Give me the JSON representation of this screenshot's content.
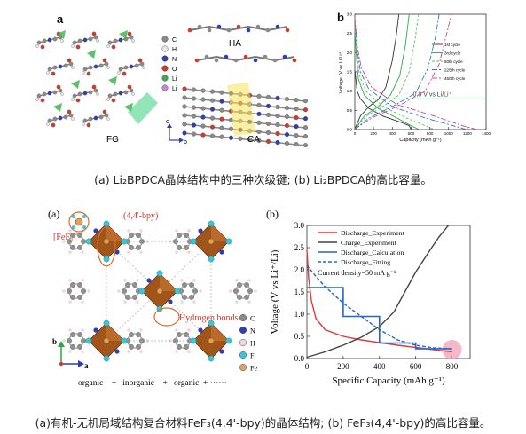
{
  "figure1": {
    "panel_a": {
      "label": "a",
      "annotations": {
        "ha": "HA",
        "fg": "FG",
        "ca": "CA"
      },
      "legend": [
        {
          "symbol": "C",
          "color": "#8a8a8a"
        },
        {
          "symbol": "H",
          "color": "#e8e8e8"
        },
        {
          "symbol": "N",
          "color": "#2d3fb5"
        },
        {
          "symbol": "O",
          "color": "#d23a2a"
        },
        {
          "symbol": "Li",
          "color": "#37b04a"
        },
        {
          "symbol": "Li",
          "color": "#c08ad6"
        }
      ],
      "axes": {
        "c": "c",
        "b": "b"
      }
    },
    "panel_b": {
      "label": "b",
      "chart_data": {
        "type": "line",
        "xlabel": "Capacity (mAh g⁻¹)",
        "ylabel": "Voltage (V vs Li/Li⁺)",
        "xlim": [
          0,
          1400
        ],
        "ylim": [
          0,
          3.0
        ],
        "xticks": [
          0,
          200,
          400,
          600,
          800,
          1000,
          1200,
          1400
        ],
        "yticks": [
          0.0,
          0.5,
          1.0,
          1.5,
          2.0,
          2.5,
          3.0
        ],
        "annotation": "0.8 V vs Li/Li⁺",
        "annotation_y": 0.8,
        "series": [
          {
            "name": "1st cycle",
            "color": "#333333",
            "dash": "",
            "discharge": [
              [
                0,
                1.55
              ],
              [
                25,
                1.0
              ],
              [
                60,
                0.8
              ],
              [
                150,
                0.55
              ],
              [
                300,
                0.35
              ],
              [
                500,
                0.18
              ],
              [
                580,
                0.1
              ],
              [
                600,
                0.01
              ]
            ],
            "charge": [
              [
                0,
                0.01
              ],
              [
                60,
                0.35
              ],
              [
                150,
                0.6
              ],
              [
                250,
                0.78
              ],
              [
                330,
                1.1
              ],
              [
                400,
                1.8
              ],
              [
                440,
                2.4
              ],
              [
                470,
                3.0
              ]
            ]
          },
          {
            "name": "3rd cycle",
            "color": "#2aa84a",
            "dash": "",
            "discharge": [
              [
                0,
                2.6
              ],
              [
                20,
                1.8
              ],
              [
                40,
                1.3
              ],
              [
                100,
                0.9
              ],
              [
                250,
                0.55
              ],
              [
                450,
                0.3
              ],
              [
                600,
                0.1
              ],
              [
                680,
                0.01
              ]
            ],
            "charge": [
              [
                0,
                0.01
              ],
              [
                100,
                0.35
              ],
              [
                250,
                0.6
              ],
              [
                380,
                0.9
              ],
              [
                480,
                1.4
              ],
              [
                540,
                2.2
              ],
              [
                580,
                3.0
              ]
            ]
          },
          {
            "name": "50th cycle",
            "color": "#5ac25a",
            "dash": "3,2",
            "discharge": [
              [
                0,
                2.7
              ],
              [
                25,
                1.9
              ],
              [
                50,
                1.4
              ],
              [
                120,
                1.0
              ],
              [
                300,
                0.6
              ],
              [
                550,
                0.3
              ],
              [
                750,
                0.1
              ],
              [
                840,
                0.01
              ]
            ],
            "charge": [
              [
                0,
                0.01
              ],
              [
                120,
                0.35
              ],
              [
                300,
                0.6
              ],
              [
                470,
                0.9
              ],
              [
                580,
                1.5
              ],
              [
                640,
                2.3
              ],
              [
                680,
                3.0
              ]
            ]
          },
          {
            "name": "225th cycle",
            "color": "#2a7ac8",
            "dash": "6,2,2,2",
            "discharge": [
              [
                0,
                2.8
              ],
              [
                30,
                2.0
              ],
              [
                60,
                1.5
              ],
              [
                150,
                1.05
              ],
              [
                400,
                0.6
              ],
              [
                750,
                0.3
              ],
              [
                1050,
                0.1
              ],
              [
                1180,
                0.01
              ]
            ],
            "charge": [
              [
                0,
                0.01
              ],
              [
                150,
                0.3
              ],
              [
                400,
                0.6
              ],
              [
                650,
                0.95
              ],
              [
                780,
                1.6
              ],
              [
                860,
                2.4
              ],
              [
                900,
                3.0
              ]
            ]
          },
          {
            "name": "450th cycle",
            "color": "#d2409a",
            "dash": "6,2,2,2",
            "discharge": [
              [
                0,
                2.9
              ],
              [
                30,
                2.1
              ],
              [
                70,
                1.6
              ],
              [
                180,
                1.1
              ],
              [
                450,
                0.65
              ],
              [
                850,
                0.35
              ],
              [
                1150,
                0.1
              ],
              [
                1290,
                0.01
              ]
            ],
            "charge": [
              [
                0,
                0.01
              ],
              [
                180,
                0.3
              ],
              [
                450,
                0.6
              ],
              [
                750,
                1.0
              ],
              [
                900,
                1.7
              ],
              [
                980,
                2.5
              ],
              [
                1030,
                3.0
              ]
            ]
          }
        ]
      }
    },
    "caption": "(a) Li₂BPDCA晶体结构中的三种次级键; (b) Li₂BPDCA的高比容量。"
  },
  "figure2": {
    "panel_a": {
      "label": "(a)",
      "annotations": {
        "fef3": "[FeF₃]",
        "bpy": "(4,4'-bpy)",
        "hbonds": "Hydrogen bonds"
      },
      "legend": [
        {
          "symbol": "C",
          "color": "#8a8a8a"
        },
        {
          "symbol": "N",
          "color": "#2d3fb5"
        },
        {
          "symbol": "H",
          "color": "#f0d6d6"
        },
        {
          "symbol": "F",
          "color": "#38c6d8"
        },
        {
          "symbol": "Fe",
          "color": "#e0a25a"
        }
      ],
      "axes": {
        "b": "b",
        "a": "a"
      },
      "bottom_text": "organic    +   inorganic    +   organic  + ······"
    },
    "panel_b": {
      "label": "(b)",
      "chart_data": {
        "type": "line",
        "xlabel": "Specific Capacity (mAh g⁻¹)",
        "ylabel": "Voltage (V vs Li⁺/Li)",
        "xlim": [
          0,
          900
        ],
        "ylim": [
          0,
          3.0
        ],
        "xticks": [
          0,
          200,
          400,
          600,
          800
        ],
        "yticks": [
          0.0,
          0.5,
          1.0,
          1.5,
          2.0,
          2.5,
          3.0
        ],
        "note": "Current density=50 mA g⁻¹",
        "series": [
          {
            "name": "Discharge_Experiment",
            "color": "#e03a3a",
            "style": "solid",
            "points": [
              [
                0,
                2.45
              ],
              [
                10,
                1.8
              ],
              [
                25,
                1.3
              ],
              [
                50,
                0.9
              ],
              [
                100,
                0.65
              ],
              [
                200,
                0.5
              ],
              [
                300,
                0.42
              ],
              [
                400,
                0.36
              ],
              [
                500,
                0.3
              ],
              [
                600,
                0.25
              ],
              [
                700,
                0.2
              ],
              [
                800,
                0.15
              ]
            ]
          },
          {
            "name": "Charge_Experiment",
            "color": "#444444",
            "style": "solid",
            "points": [
              [
                0,
                0.03
              ],
              [
                100,
                0.15
              ],
              [
                200,
                0.3
              ],
              [
                300,
                0.48
              ],
              [
                400,
                0.72
              ],
              [
                480,
                1.05
              ],
              [
                540,
                1.5
              ],
              [
                600,
                1.95
              ],
              [
                680,
                2.45
              ],
              [
                730,
                2.75
              ],
              [
                780,
                3.0
              ]
            ]
          },
          {
            "name": "Discharge_Calculation",
            "color": "#2266cc",
            "style": "step",
            "points": [
              [
                0,
                1.6
              ],
              [
                200,
                1.6
              ],
              [
                200,
                0.95
              ],
              [
                400,
                0.95
              ],
              [
                400,
                0.35
              ],
              [
                600,
                0.35
              ],
              [
                600,
                0.22
              ],
              [
                800,
                0.22
              ]
            ]
          },
          {
            "name": "Discharge_Fitting",
            "color": "#2266cc",
            "style": "dashed",
            "points": [
              [
                0,
                2.1
              ],
              [
                50,
                1.85
              ],
              [
                100,
                1.62
              ],
              [
                200,
                1.25
              ],
              [
                300,
                0.95
              ],
              [
                400,
                0.65
              ],
              [
                500,
                0.42
              ],
              [
                600,
                0.3
              ],
              [
                700,
                0.24
              ],
              [
                800,
                0.22
              ]
            ]
          }
        ]
      }
    },
    "caption": "(a)有机-无机局域结构复合材料FeF₃(4,4'-bpy)的晶体结构; (b) FeF₃(4,4'-bpy)的高比容量。"
  }
}
